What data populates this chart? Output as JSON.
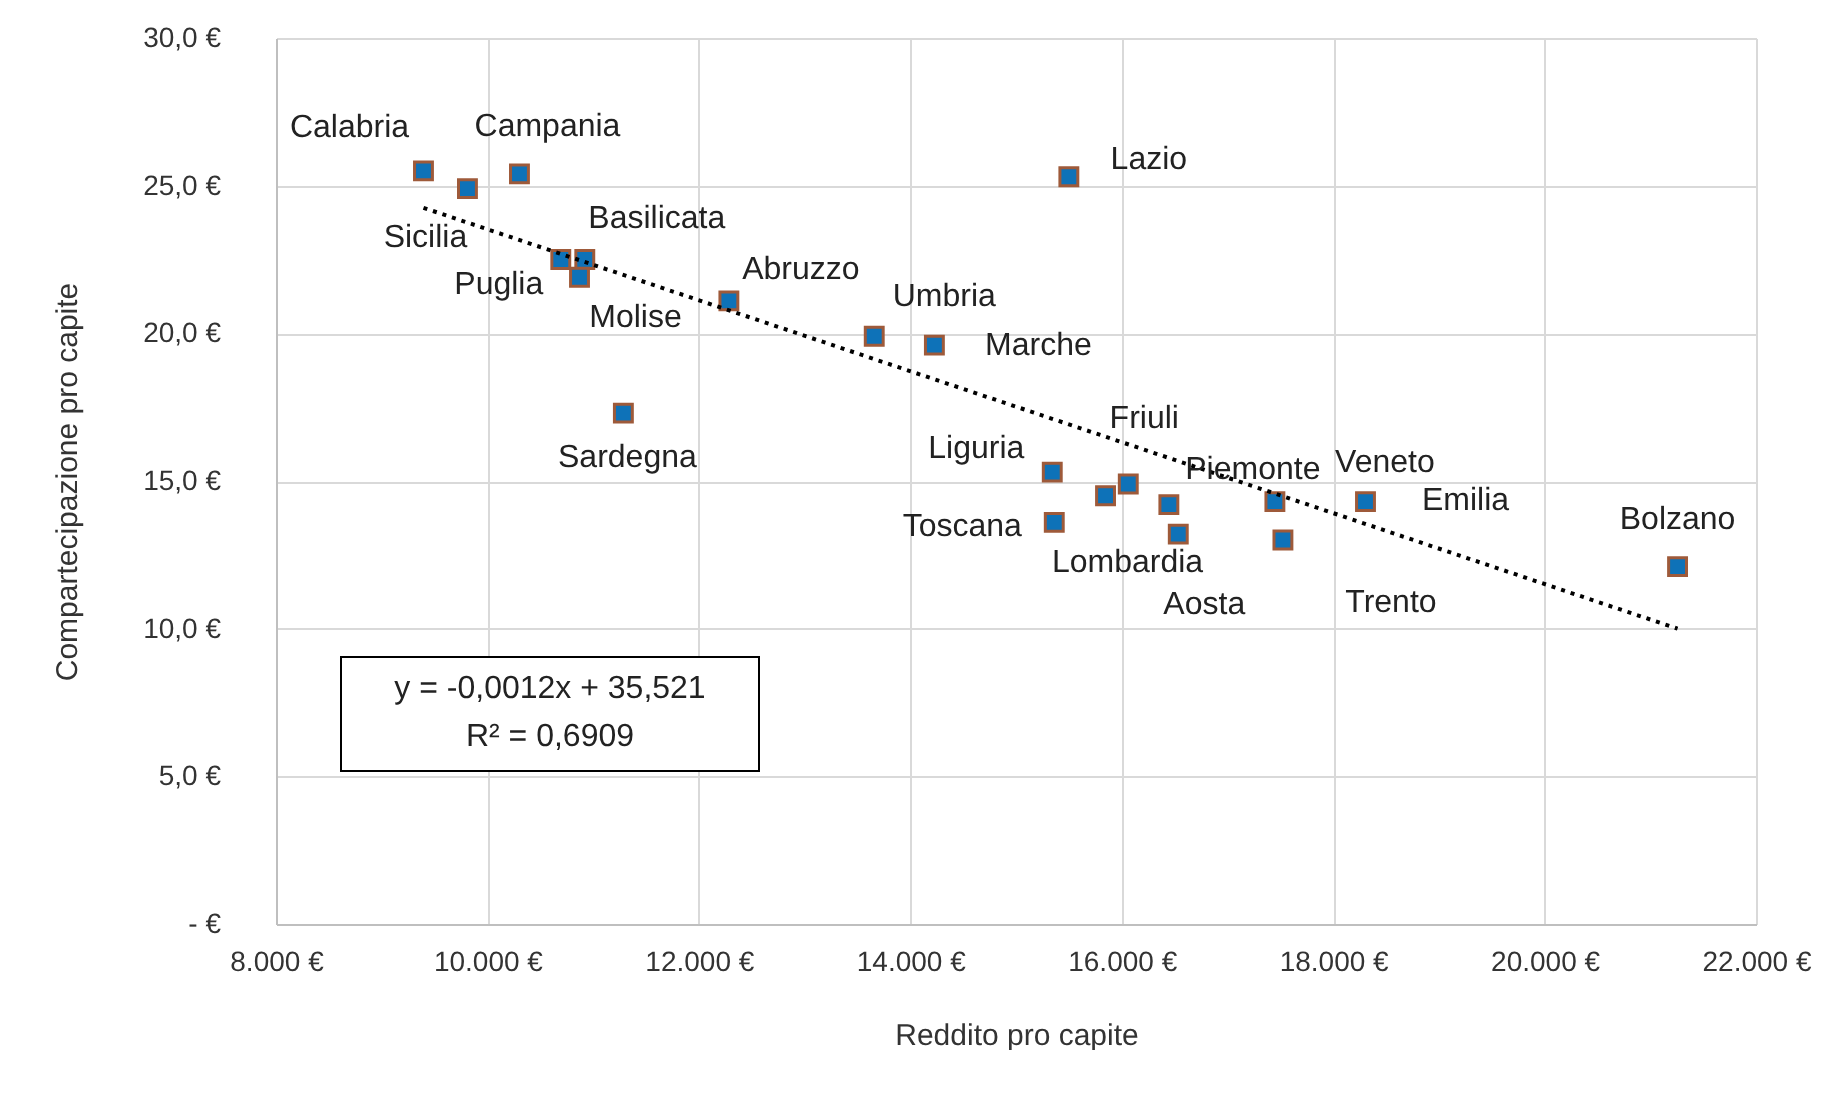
{
  "chart_data": {
    "type": "scatter",
    "xlabel": "Reddito pro capite",
    "ylabel": "Compartecipazione pro capite",
    "xlim": [
      8000,
      22000
    ],
    "ylim": [
      0,
      30
    ],
    "xticks": [
      {
        "value": 8000,
        "label": "8.000 €"
      },
      {
        "value": 10000,
        "label": "10.000 €"
      },
      {
        "value": 12000,
        "label": "12.000 €"
      },
      {
        "value": 14000,
        "label": "14.000 €"
      },
      {
        "value": 16000,
        "label": "16.000 €"
      },
      {
        "value": 18000,
        "label": "18.000 €"
      },
      {
        "value": 20000,
        "label": "20.000 €"
      },
      {
        "value": 22000,
        "label": "22.000 €"
      }
    ],
    "yticks": [
      {
        "value": 0,
        "label": "-   €"
      },
      {
        "value": 5,
        "label": "5,0 €"
      },
      {
        "value": 10,
        "label": "10,0 €"
      },
      {
        "value": 15,
        "label": "15,0 €"
      },
      {
        "value": 20,
        "label": "20,0 €"
      },
      {
        "value": 25,
        "label": "25,0 €"
      },
      {
        "value": 30,
        "label": "30,0 €"
      }
    ],
    "grid": true,
    "marker": "square",
    "series": [
      {
        "type": "scatter",
        "color": "#0e72b8",
        "x": [
          9395,
          9811,
          10303,
          10694,
          10921,
          10871,
          12284,
          11286,
          13659,
          14228,
          15500,
          15343,
          15362,
          15847,
          16062,
          16446,
          16535,
          17449,
          17525,
          18306,
          21258
        ],
        "values": [
          25.5,
          24.9,
          25.4,
          22.5,
          22.5,
          21.9,
          21.1,
          17.3,
          19.9,
          19.6,
          25.3,
          15.3,
          13.6,
          14.5,
          14.9,
          14.2,
          13.2,
          14.3,
          13.0,
          14.3,
          12.1
        ]
      },
      {
        "type": "line",
        "color": "#000000",
        "line_style": "dotted",
        "marker": "none",
        "x": [
          9395,
          21258
        ],
        "values": [
          24.25,
          10.0
        ]
      }
    ],
    "annotations": [
      {
        "text": "Calabria",
        "x": 9395,
        "y": 25.5
      },
      {
        "text": "Sicilia",
        "x": 9811,
        "y": 24.9
      },
      {
        "text": "Campania",
        "x": 10303,
        "y": 25.4
      },
      {
        "text": "Puglia",
        "x": 10694,
        "y": 22.5
      },
      {
        "text": "Basilicata",
        "x": 10921,
        "y": 22.5
      },
      {
        "text": "Molise",
        "x": 10871,
        "y": 21.9
      },
      {
        "text": "Abruzzo",
        "x": 12284,
        "y": 21.1
      },
      {
        "text": "Sardegna",
        "x": 11286,
        "y": 17.3
      },
      {
        "text": "Umbria",
        "x": 13659,
        "y": 19.9
      },
      {
        "text": "Marche",
        "x": 14228,
        "y": 19.6
      },
      {
        "text": "Lazio",
        "x": 15500,
        "y": 25.3
      },
      {
        "text": "Liguria",
        "x": 15343,
        "y": 15.3
      },
      {
        "text": "Toscana",
        "x": 15362,
        "y": 13.6
      },
      {
        "text": "Lombardia",
        "x": 15847,
        "y": 14.5
      },
      {
        "text": "Friuli",
        "x": 16062,
        "y": 14.9
      },
      {
        "text": "Piemonte",
        "x": 16446,
        "y": 14.2
      },
      {
        "text": "Aosta",
        "x": 16535,
        "y": 13.2
      },
      {
        "text": "Veneto",
        "x": 17449,
        "y": 14.3
      },
      {
        "text": "Trento",
        "x": 17525,
        "y": 13.0
      },
      {
        "text": "Emilia",
        "x": 18306,
        "y": 14.3
      },
      {
        "text": "Bolzano",
        "x": 21258,
        "y": 12.1
      },
      "y = -0,0012x + 35,521",
      "R² = 0,6909"
    ]
  }
}
